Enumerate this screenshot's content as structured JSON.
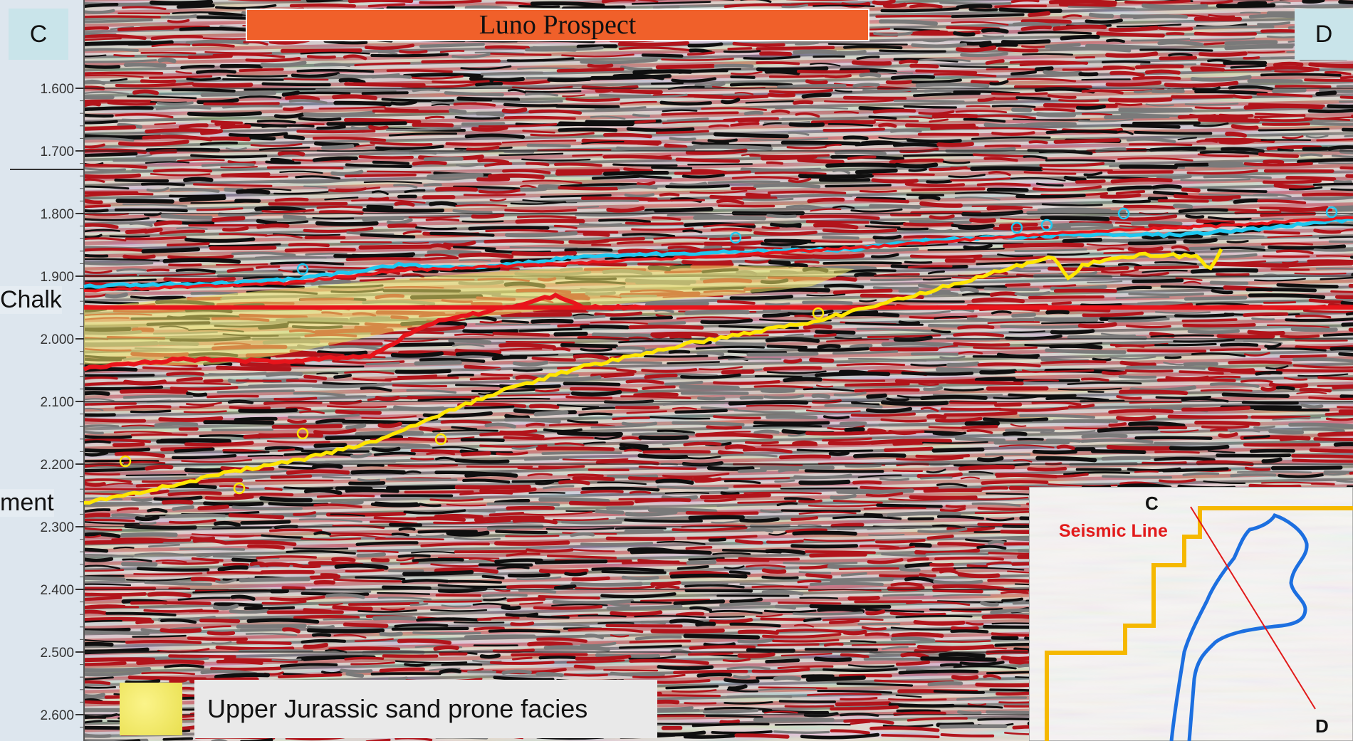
{
  "title": "Luno Prospect",
  "corners": {
    "left": "C",
    "right": "D"
  },
  "time_axis": {
    "ticks": [
      "1.600",
      "1.700",
      "1.800",
      "1.900",
      "2.000",
      "2.100",
      "2.200",
      "2.300",
      "2.400",
      "2.500",
      "2.600"
    ]
  },
  "horizon_labels": {
    "chalk": "Chalk",
    "basement": "ment"
  },
  "legend": {
    "label": "Upper Jurassic sand prone facies",
    "color": "#f4ec6a"
  },
  "inset_map": {
    "point_start": "C",
    "point_end": "D",
    "line_label": "Seismic Line",
    "line_color": "#e21a1a",
    "block_outline_color": "#f5b800",
    "prospect_outline_color": "#1c6fe0"
  },
  "colors": {
    "seismic_red": "#b2141b",
    "seismic_black": "#0f0f0f",
    "horizon_cyan": "#1ec8f0",
    "horizon_red": "#e8141b",
    "horizon_yellow": "#ffe600",
    "title_fill": "#f0602a"
  }
}
